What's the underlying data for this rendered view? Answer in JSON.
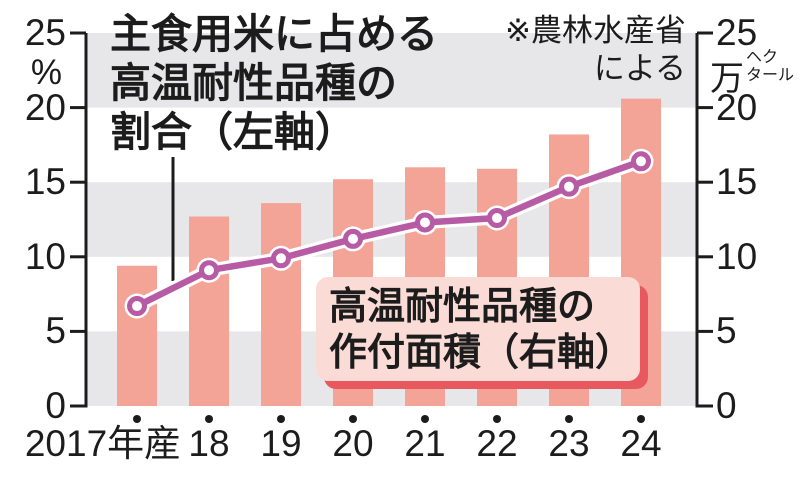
{
  "chart_data": {
    "type": "combo-bar-line",
    "categories": [
      "2017年産",
      "18",
      "19",
      "20",
      "21",
      "22",
      "23",
      "24"
    ],
    "series": [
      {
        "name": "高温耐性品種の作付面積（右軸）",
        "type": "bar",
        "axis": "right",
        "unit": "万ヘクタール",
        "values": [
          9.4,
          12.7,
          13.6,
          15.2,
          16.0,
          15.9,
          18.2,
          20.6
        ]
      },
      {
        "name": "主食用米に占める高温耐性品種の割合（左軸）",
        "type": "line",
        "axis": "left",
        "unit": "%",
        "values": [
          6.7,
          9.1,
          9.9,
          11.2,
          12.3,
          12.6,
          14.7,
          16.4
        ]
      }
    ],
    "left_axis": {
      "min": 0,
      "max": 25,
      "tick_step": 5,
      "ticks": [
        "25",
        "20",
        "15",
        "10",
        "5",
        "0"
      ],
      "unit": "%"
    },
    "right_axis": {
      "min": 0,
      "max": 25,
      "tick_step": 5,
      "ticks": [
        "25",
        "20",
        "15",
        "10",
        "5",
        "0"
      ],
      "unit_main": "万",
      "unit_small_line1": "ヘク",
      "unit_small_line2": "タール"
    },
    "background_bands": [
      [
        20,
        25
      ],
      [
        10,
        15
      ],
      [
        0,
        5
      ]
    ],
    "grid": "banded",
    "legend_position": "annotations-inline",
    "annotations": {
      "line_label_line1": "主食用米に占める",
      "line_label_line2": "高温耐性品種の",
      "line_label_line3": "割合（左軸）",
      "bar_label_line1": "高温耐性品種の",
      "bar_label_line2": "作付面積（右軸）",
      "source_line1": "※農林水産省",
      "source_line2": "による"
    },
    "colors": {
      "bar": "#f4a496",
      "line": "#b75ba4",
      "band": "#e7e7e9",
      "axis": "#1c1c1c",
      "text": "#1c1c1c",
      "box_bg": "#fbdbd6",
      "box_shadow": "#e8595f",
      "marker_fill": "#ffffff",
      "halo": "#ffffff"
    }
  }
}
